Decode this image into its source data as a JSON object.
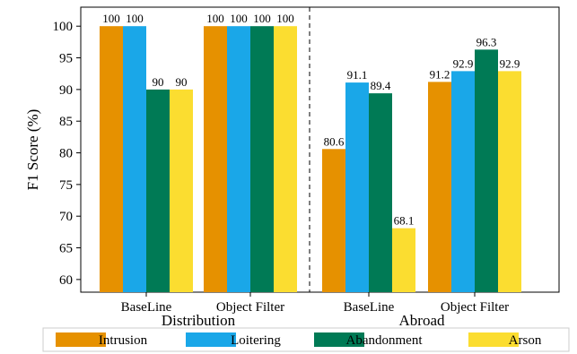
{
  "chart_data": {
    "type": "bar",
    "ylabel": "F1 Score (%)",
    "ylim": [
      58,
      103
    ],
    "yticks": [
      "60",
      "65",
      "70",
      "75",
      "80",
      "85",
      "90",
      "95",
      "100"
    ],
    "groups": [
      {
        "label": "Distribution",
        "categories": [
          "BaseLine",
          "Object Filter"
        ]
      },
      {
        "label": "Abroad",
        "categories": [
          "BaseLine",
          "Object Filter"
        ]
      }
    ],
    "series": [
      {
        "name": "Intrusion",
        "color": "#E69100",
        "values": [
          100,
          100,
          80.6,
          91.2
        ],
        "labels": [
          "100",
          "100",
          "80.6",
          "91.2"
        ]
      },
      {
        "name": "Loitering",
        "color": "#1AA7E8",
        "values": [
          100,
          100,
          91.1,
          92.9
        ],
        "labels": [
          "100",
          "100",
          "91.1",
          "92.9"
        ]
      },
      {
        "name": "Abandonment",
        "color": "#007A55",
        "values": [
          90,
          100,
          89.4,
          96.3
        ],
        "labels": [
          "90",
          "100",
          "89.4",
          "96.3"
        ]
      },
      {
        "name": "Arson",
        "color": "#FBDD30",
        "values": [
          90,
          100,
          68.1,
          92.9
        ],
        "labels": [
          "90",
          "100",
          "68.1",
          "92.9"
        ]
      }
    ],
    "legend_position": "bottom",
    "separator": "dashed line between groups"
  }
}
